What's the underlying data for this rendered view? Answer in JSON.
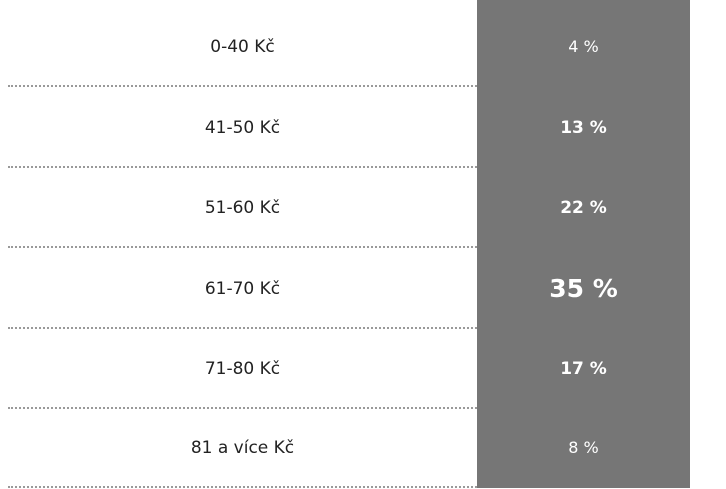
{
  "table": {
    "rows": [
      [
        "0-40 Kč",
        "4 %"
      ],
      [
        "41-50 Kč",
        "13 %"
      ],
      [
        "51-60 Kč",
        "22 %"
      ],
      [
        "61-70 Kč",
        "35 %"
      ],
      [
        "71-80 Kč",
        "17 %"
      ],
      [
        "81 a více Kč",
        "8 %"
      ]
    ]
  }
}
